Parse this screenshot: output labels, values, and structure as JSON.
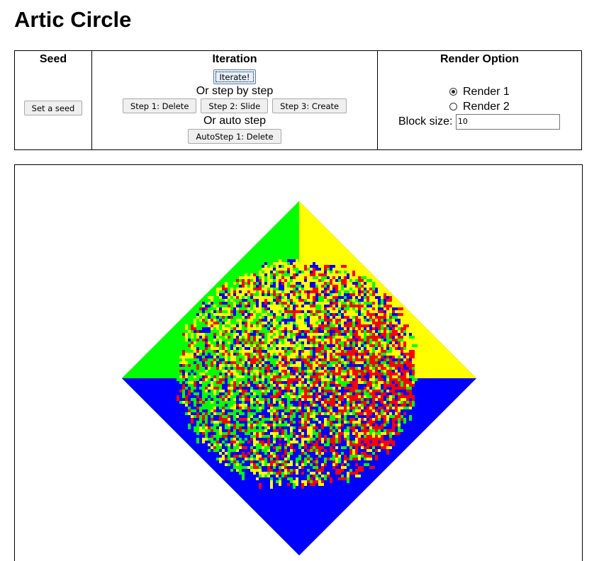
{
  "page": {
    "title": "Artic Circle"
  },
  "seed": {
    "heading": "Seed",
    "set_seed_label": "Set a seed"
  },
  "iteration": {
    "heading": "Iteration",
    "iterate_label": "Iterate!",
    "step_caption": "Or step by step",
    "step1_label": "Step 1: Delete",
    "step2_label": "Step 2: Slide",
    "step3_label": "Step 3: Create",
    "auto_caption": "Or auto step",
    "autostep_label": "AutoStep 1: Delete"
  },
  "render": {
    "heading": "Render Option",
    "option1_label": "Render 1",
    "option2_label": "Render 2",
    "selected": "Render 1",
    "block_size_label": "Block size:",
    "block_size_value": "10"
  },
  "tiling": {
    "colors": {
      "north": "#ffff00",
      "east": "#ff0000",
      "south": "#0000ff",
      "west": "#00ff00",
      "background": "#ffffff"
    }
  }
}
